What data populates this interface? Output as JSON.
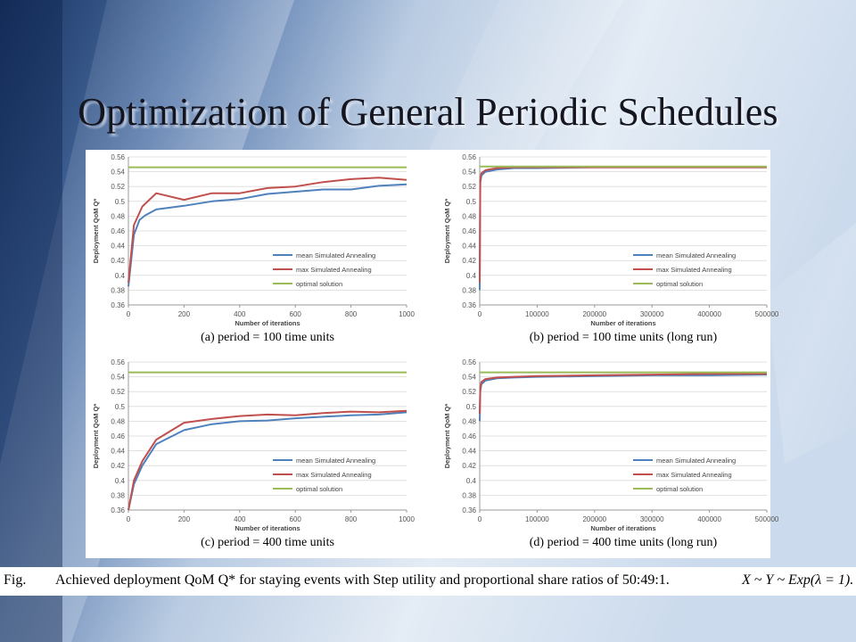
{
  "slide": {
    "title": "Optimization of General Periodic Schedules",
    "caption_label": "Fig.",
    "caption_text": "Achieved deployment QoM Q* for staying events with Step utility and proportional share ratios of 50:49:1.",
    "caption_math": "X ~ Y ~ Exp(λ = 1)."
  },
  "colors": {
    "mean": "#4f81bd",
    "max": "#c0504d",
    "optimal": "#9bbb59",
    "background_dark": "#1a3a6e",
    "background_light": "#dbe6f2"
  },
  "chart_data": [
    {
      "type": "line",
      "subcaption": "(a) period = 100 time units",
      "xlabel": "Number of iterations",
      "ylabel": "Deployment QoM Q*",
      "xlim": [
        0,
        1000
      ],
      "ylim": [
        0.36,
        0.56
      ],
      "xticks": [
        "0",
        "200",
        "400",
        "600",
        "800",
        "1000"
      ],
      "yticks": [
        "0.36",
        "0.38",
        "0.4",
        "0.42",
        "0.44",
        "0.46",
        "0.48",
        "0.5",
        "0.52",
        "0.54",
        "0.56"
      ],
      "grid": true,
      "legend": "bottom-right",
      "series": [
        {
          "name": "mean Simulated Annealing",
          "x": [
            0,
            20,
            40,
            60,
            100,
            200,
            300,
            400,
            500,
            600,
            700,
            800,
            900,
            1000
          ],
          "y": [
            0.385,
            0.455,
            0.475,
            0.481,
            0.489,
            0.494,
            0.5,
            0.503,
            0.51,
            0.513,
            0.516,
            0.516,
            0.521,
            0.523
          ]
        },
        {
          "name": "max Simulated Annealing",
          "x": [
            0,
            20,
            50,
            100,
            200,
            300,
            400,
            500,
            600,
            700,
            800,
            900,
            1000
          ],
          "y": [
            0.39,
            0.468,
            0.493,
            0.511,
            0.502,
            0.511,
            0.511,
            0.518,
            0.52,
            0.526,
            0.53,
            0.532,
            0.529
          ]
        },
        {
          "name": "optimal solution",
          "x": [
            0,
            1000
          ],
          "y": [
            0.546,
            0.546
          ]
        }
      ]
    },
    {
      "type": "line",
      "subcaption": "(b) period = 100 time units (long run)",
      "xlabel": "Number of iterations",
      "ylabel": "Deployment QoM Q*",
      "xlim": [
        0,
        500000
      ],
      "ylim": [
        0.36,
        0.56
      ],
      "xticks": [
        "0",
        "100000",
        "200000",
        "300000",
        "400000",
        "500000"
      ],
      "yticks": [
        "0.36",
        "0.38",
        "0.4",
        "0.42",
        "0.44",
        "0.46",
        "0.48",
        "0.5",
        "0.52",
        "0.54",
        "0.56"
      ],
      "grid": true,
      "legend": "bottom-right",
      "series": [
        {
          "name": "mean Simulated Annealing",
          "x": [
            0,
            1000,
            3000,
            10000,
            30000,
            60000,
            100000,
            200000,
            300000,
            400000,
            500000
          ],
          "y": [
            0.38,
            0.525,
            0.535,
            0.54,
            0.543,
            0.545,
            0.545,
            0.546,
            0.546,
            0.546,
            0.546
          ]
        },
        {
          "name": "max Simulated Annealing",
          "x": [
            0,
            1000,
            3000,
            10000,
            30000,
            60000,
            100000,
            200000,
            300000,
            400000,
            500000
          ],
          "y": [
            0.39,
            0.53,
            0.538,
            0.542,
            0.545,
            0.546,
            0.546,
            0.546,
            0.546,
            0.546,
            0.546
          ]
        },
        {
          "name": "optimal solution",
          "x": [
            0,
            500000
          ],
          "y": [
            0.547,
            0.547
          ]
        }
      ]
    },
    {
      "type": "line",
      "subcaption": "(c) period = 400 time units",
      "xlabel": "Number of iterations",
      "ylabel": "Deployment QoM Q*",
      "xlim": [
        0,
        1000
      ],
      "ylim": [
        0.36,
        0.56
      ],
      "xticks": [
        "0",
        "200",
        "400",
        "600",
        "800",
        "1000"
      ],
      "yticks": [
        "0.36",
        "0.38",
        "0.4",
        "0.42",
        "0.44",
        "0.46",
        "0.48",
        "0.5",
        "0.52",
        "0.54",
        "0.56"
      ],
      "grid": true,
      "legend": "bottom-right",
      "series": [
        {
          "name": "mean Simulated Annealing",
          "x": [
            0,
            20,
            50,
            100,
            200,
            300,
            400,
            500,
            600,
            700,
            800,
            900,
            1000
          ],
          "y": [
            0.36,
            0.395,
            0.42,
            0.449,
            0.468,
            0.476,
            0.48,
            0.481,
            0.484,
            0.486,
            0.488,
            0.489,
            0.492
          ]
        },
        {
          "name": "max Simulated Annealing",
          "x": [
            0,
            20,
            50,
            100,
            200,
            300,
            400,
            500,
            600,
            700,
            800,
            900,
            1000
          ],
          "y": [
            0.36,
            0.4,
            0.426,
            0.455,
            0.478,
            0.483,
            0.487,
            0.489,
            0.488,
            0.491,
            0.493,
            0.492,
            0.494
          ]
        },
        {
          "name": "optimal solution",
          "x": [
            0,
            1000
          ],
          "y": [
            0.546,
            0.546
          ]
        }
      ]
    },
    {
      "type": "line",
      "subcaption": "(d) period = 400 time units (long run)",
      "xlabel": "Number of iterations",
      "ylabel": "Deployment QoM Q*",
      "xlim": [
        0,
        500000
      ],
      "ylim": [
        0.36,
        0.56
      ],
      "xticks": [
        "0",
        "100000",
        "200000",
        "300000",
        "400000",
        "500000"
      ],
      "yticks": [
        "0.36",
        "0.38",
        "0.4",
        "0.42",
        "0.44",
        "0.46",
        "0.48",
        "0.5",
        "0.52",
        "0.54",
        "0.56"
      ],
      "grid": true,
      "legend": "bottom-right",
      "series": [
        {
          "name": "mean Simulated Annealing",
          "x": [
            0,
            1000,
            3000,
            10000,
            30000,
            60000,
            100000,
            200000,
            300000,
            400000,
            500000
          ],
          "y": [
            0.48,
            0.52,
            0.53,
            0.535,
            0.538,
            0.539,
            0.54,
            0.541,
            0.542,
            0.542,
            0.543
          ]
        },
        {
          "name": "max Simulated Annealing",
          "x": [
            0,
            1000,
            3000,
            10000,
            30000,
            60000,
            100000,
            200000,
            300000,
            400000,
            500000
          ],
          "y": [
            0.49,
            0.525,
            0.533,
            0.537,
            0.539,
            0.54,
            0.541,
            0.542,
            0.543,
            0.544,
            0.544
          ]
        },
        {
          "name": "optimal solution",
          "x": [
            0,
            500000
          ],
          "y": [
            0.546,
            0.546
          ]
        }
      ]
    }
  ]
}
